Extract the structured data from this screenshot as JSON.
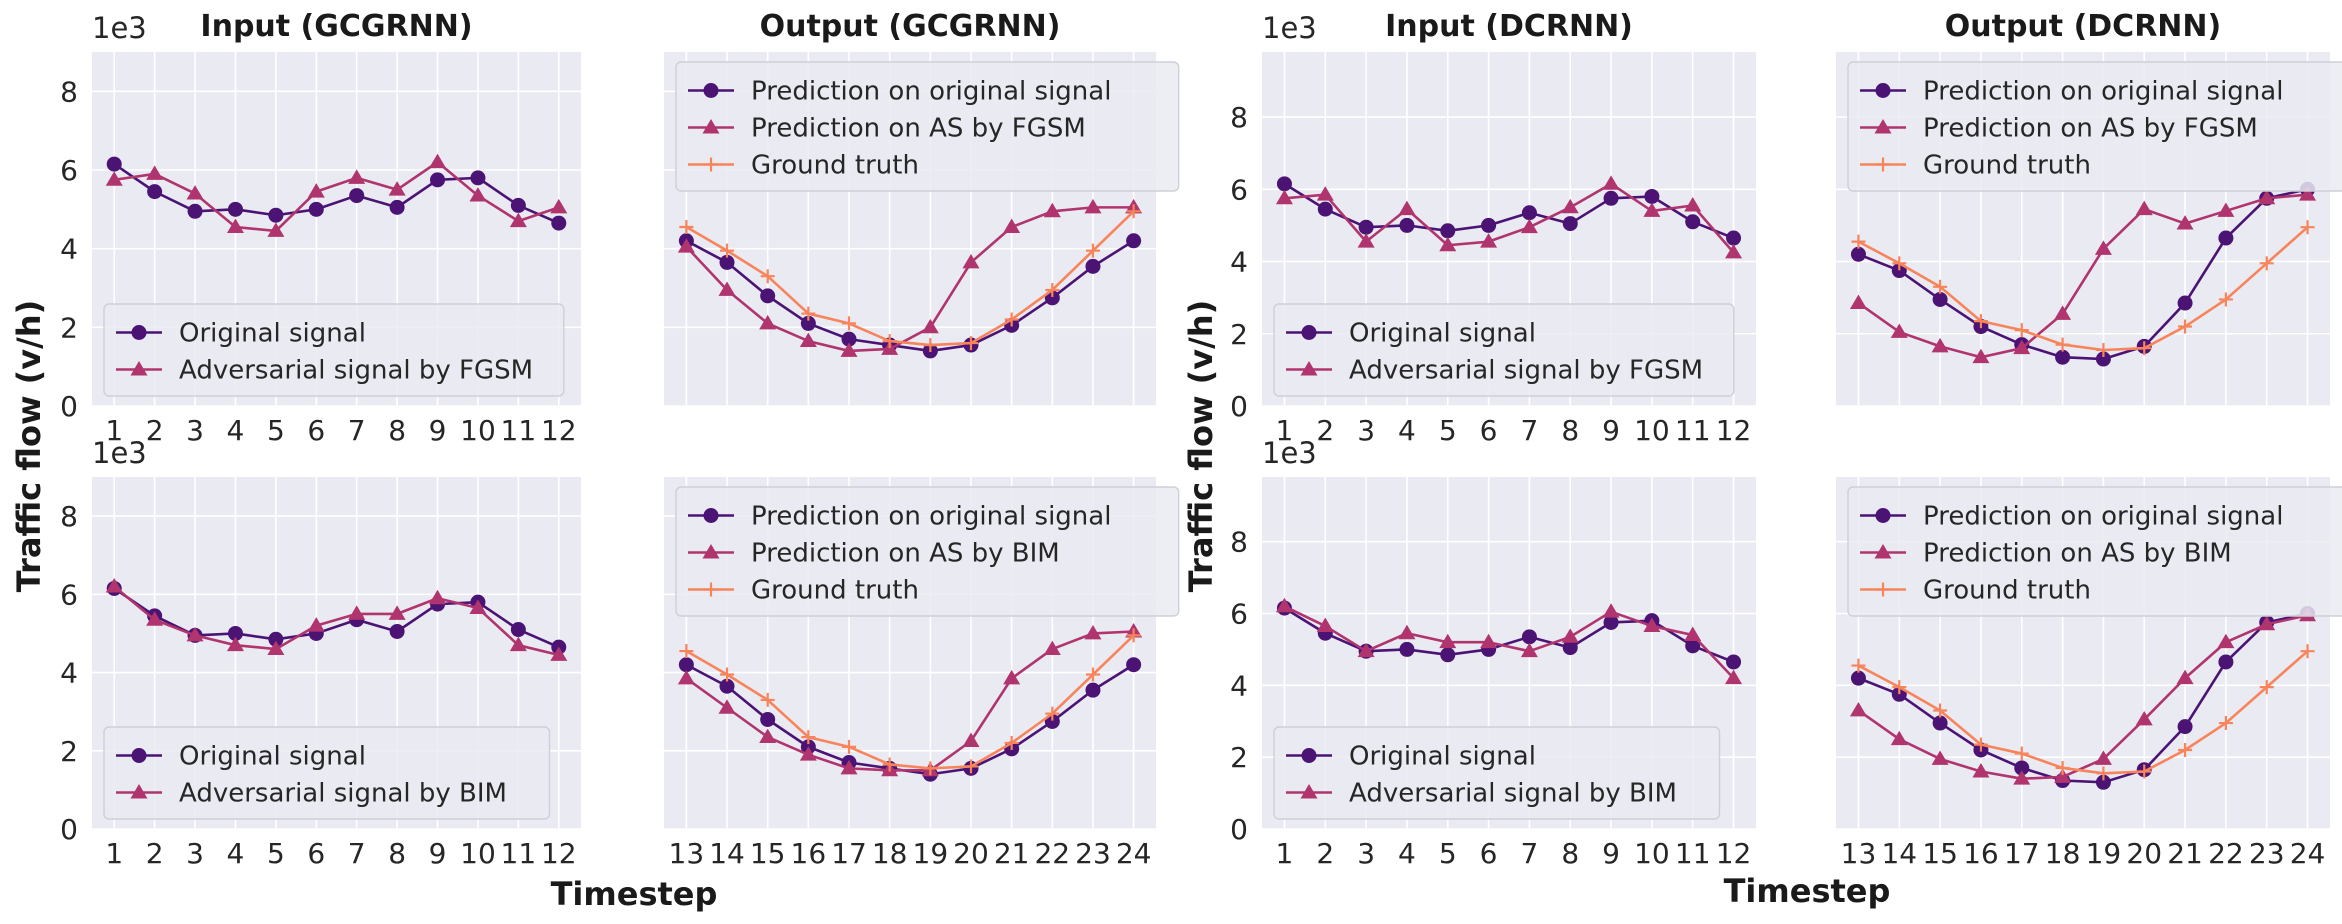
{
  "colors": {
    "original": "#4a1374",
    "adversarial": "#b0346e",
    "ground": "#f7845b",
    "panel_bg": "#eaeaf2",
    "grid": "#ffffff",
    "legend_bg": "#eaeaf2"
  },
  "labels": {
    "ylabel": "Traffic flow (v/h)",
    "xlabel": "Timestep",
    "multiplier": "1e3"
  },
  "chart_data": [
    {
      "type": "line",
      "title": "Input (GCGRNN)",
      "ylim": [
        0,
        9
      ],
      "yticks": [
        0,
        2,
        4,
        6,
        8
      ],
      "x": [
        1,
        2,
        3,
        4,
        5,
        6,
        7,
        8,
        9,
        10,
        11,
        12
      ],
      "xticks": [
        1,
        2,
        3,
        4,
        5,
        6,
        7,
        8,
        9,
        10,
        11,
        12
      ],
      "legend_position": "lower-left",
      "show_multiplier": true,
      "series": [
        {
          "name": "Original signal",
          "style": "original",
          "values": [
            6.15,
            5.45,
            4.95,
            5.0,
            4.85,
            5.0,
            5.35,
            5.05,
            5.75,
            5.8,
            5.1,
            4.65
          ]
        },
        {
          "name": "Adversarial signal by FGSM",
          "style": "adversarial",
          "values": [
            5.75,
            5.9,
            5.4,
            4.55,
            4.45,
            5.45,
            5.8,
            5.5,
            6.2,
            5.35,
            4.7,
            5.05
          ]
        }
      ]
    },
    {
      "type": "line",
      "title": "Output (GCGRNN)",
      "ylim": [
        0,
        9
      ],
      "yticks": [
        0,
        2,
        4,
        6,
        8
      ],
      "x": [
        13,
        14,
        15,
        16,
        17,
        18,
        19,
        20,
        21,
        22,
        23,
        24
      ],
      "xticks": [],
      "legend_position": "upper-left",
      "show_multiplier": false,
      "series": [
        {
          "name": "Prediction on original signal",
          "style": "original",
          "values": [
            4.2,
            3.65,
            2.8,
            2.1,
            1.7,
            1.55,
            1.4,
            1.55,
            2.05,
            2.75,
            3.55,
            4.2
          ]
        },
        {
          "name": "Prediction on AS by FGSM",
          "style": "adversarial",
          "values": [
            4.05,
            2.95,
            2.1,
            1.65,
            1.4,
            1.45,
            2.0,
            3.65,
            4.55,
            4.95,
            5.05,
            5.05
          ]
        },
        {
          "name": "Ground truth",
          "style": "ground",
          "values": [
            4.55,
            3.95,
            3.3,
            2.35,
            2.1,
            1.65,
            1.55,
            1.6,
            2.2,
            2.95,
            3.95,
            4.95
          ]
        }
      ]
    },
    {
      "type": "line",
      "title": "Input (DCRNN)",
      "ylim": [
        0,
        9.8
      ],
      "yticks": [
        0,
        2,
        4,
        6,
        8
      ],
      "x": [
        1,
        2,
        3,
        4,
        5,
        6,
        7,
        8,
        9,
        10,
        11,
        12
      ],
      "xticks": [
        1,
        2,
        3,
        4,
        5,
        6,
        7,
        8,
        9,
        10,
        11,
        12
      ],
      "legend_position": "lower-left",
      "show_multiplier": true,
      "series": [
        {
          "name": "Original signal",
          "style": "original",
          "values": [
            6.15,
            5.45,
            4.95,
            5.0,
            4.85,
            5.0,
            5.35,
            5.05,
            5.75,
            5.8,
            5.1,
            4.65
          ]
        },
        {
          "name": "Adversarial signal by FGSM",
          "style": "adversarial",
          "values": [
            5.75,
            5.85,
            4.55,
            5.45,
            4.45,
            4.55,
            4.95,
            5.5,
            6.15,
            5.4,
            5.55,
            4.25
          ]
        }
      ]
    },
    {
      "type": "line",
      "title": "Output (DCRNN)",
      "ylim": [
        0,
        9.8
      ],
      "yticks": [
        0,
        2,
        4,
        6,
        8
      ],
      "x": [
        13,
        14,
        15,
        16,
        17,
        18,
        19,
        20,
        21,
        22,
        23,
        24
      ],
      "xticks": [],
      "legend_position": "upper-left",
      "show_multiplier": false,
      "series": [
        {
          "name": "Prediction on original signal",
          "style": "original",
          "values": [
            4.2,
            3.75,
            2.95,
            2.2,
            1.7,
            1.35,
            1.3,
            1.65,
            2.85,
            4.65,
            5.75,
            6.0
          ]
        },
        {
          "name": "Prediction on AS by FGSM",
          "style": "adversarial",
          "values": [
            2.85,
            2.05,
            1.65,
            1.35,
            1.6,
            2.55,
            4.35,
            5.45,
            5.05,
            5.4,
            5.75,
            5.85
          ]
        },
        {
          "name": "Ground truth",
          "style": "ground",
          "values": [
            4.55,
            3.95,
            3.3,
            2.35,
            2.1,
            1.7,
            1.55,
            1.6,
            2.2,
            2.95,
            3.95,
            4.95
          ]
        }
      ]
    },
    {
      "type": "line",
      "title": "",
      "ylim": [
        0,
        9
      ],
      "yticks": [
        0,
        2,
        4,
        6,
        8
      ],
      "x": [
        1,
        2,
        3,
        4,
        5,
        6,
        7,
        8,
        9,
        10,
        11,
        12
      ],
      "xticks": [
        1,
        2,
        3,
        4,
        5,
        6,
        7,
        8,
        9,
        10,
        11,
        12
      ],
      "legend_position": "lower-left",
      "show_multiplier": true,
      "series": [
        {
          "name": "Original signal",
          "style": "original",
          "values": [
            6.15,
            5.45,
            4.95,
            5.0,
            4.85,
            5.0,
            5.35,
            5.05,
            5.75,
            5.8,
            5.1,
            4.65
          ]
        },
        {
          "name": "Adversarial signal by BIM",
          "style": "adversarial",
          "values": [
            6.2,
            5.35,
            4.95,
            4.7,
            4.6,
            5.2,
            5.5,
            5.5,
            5.9,
            5.65,
            4.7,
            4.45
          ]
        }
      ]
    },
    {
      "type": "line",
      "title": "",
      "ylim": [
        0,
        9
      ],
      "yticks": [
        0,
        2,
        4,
        6,
        8
      ],
      "x": [
        13,
        14,
        15,
        16,
        17,
        18,
        19,
        20,
        21,
        22,
        23,
        24
      ],
      "xticks": [
        13,
        14,
        15,
        16,
        17,
        18,
        19,
        20,
        21,
        22,
        23,
        24
      ],
      "legend_position": "upper-left",
      "show_multiplier": false,
      "series": [
        {
          "name": "Prediction on original signal",
          "style": "original",
          "values": [
            4.2,
            3.65,
            2.8,
            2.1,
            1.7,
            1.55,
            1.4,
            1.55,
            2.05,
            2.75,
            3.55,
            4.2
          ]
        },
        {
          "name": "Prediction on AS by BIM",
          "style": "adversarial",
          "values": [
            3.85,
            3.1,
            2.35,
            1.9,
            1.55,
            1.5,
            1.5,
            2.25,
            3.85,
            4.6,
            5.0,
            5.05
          ]
        },
        {
          "name": "Ground truth",
          "style": "ground",
          "values": [
            4.55,
            3.95,
            3.3,
            2.35,
            2.1,
            1.65,
            1.55,
            1.6,
            2.2,
            2.95,
            3.95,
            4.95
          ]
        }
      ]
    },
    {
      "type": "line",
      "title": "",
      "ylim": [
        0,
        9.8
      ],
      "yticks": [
        0,
        2,
        4,
        6,
        8
      ],
      "x": [
        1,
        2,
        3,
        4,
        5,
        6,
        7,
        8,
        9,
        10,
        11,
        12
      ],
      "xticks": [
        1,
        2,
        3,
        4,
        5,
        6,
        7,
        8,
        9,
        10,
        11,
        12
      ],
      "legend_position": "lower-left",
      "show_multiplier": true,
      "series": [
        {
          "name": "Original signal",
          "style": "original",
          "values": [
            6.15,
            5.45,
            4.95,
            5.0,
            4.85,
            5.0,
            5.35,
            5.05,
            5.75,
            5.8,
            5.1,
            4.65
          ]
        },
        {
          "name": "Adversarial signal by BIM",
          "style": "adversarial",
          "values": [
            6.2,
            5.65,
            4.95,
            5.45,
            5.2,
            5.2,
            4.95,
            5.35,
            6.05,
            5.65,
            5.4,
            4.2
          ]
        }
      ]
    },
    {
      "type": "line",
      "title": "",
      "ylim": [
        0,
        9.8
      ],
      "yticks": [
        0,
        2,
        4,
        6,
        8
      ],
      "x": [
        13,
        14,
        15,
        16,
        17,
        18,
        19,
        20,
        21,
        22,
        23,
        24
      ],
      "xticks": [
        13,
        14,
        15,
        16,
        17,
        18,
        19,
        20,
        21,
        22,
        23,
        24
      ],
      "legend_position": "upper-left",
      "show_multiplier": false,
      "series": [
        {
          "name": "Prediction on original signal",
          "style": "original",
          "values": [
            4.2,
            3.75,
            2.95,
            2.2,
            1.7,
            1.35,
            1.3,
            1.65,
            2.85,
            4.65,
            5.75,
            6.0
          ]
        },
        {
          "name": "Prediction on AS by BIM",
          "style": "adversarial",
          "values": [
            3.3,
            2.5,
            1.95,
            1.6,
            1.4,
            1.45,
            1.95,
            3.05,
            4.2,
            5.2,
            5.7,
            5.95
          ]
        },
        {
          "name": "Ground truth",
          "style": "ground",
          "values": [
            4.55,
            3.95,
            3.3,
            2.35,
            2.1,
            1.7,
            1.55,
            1.6,
            2.2,
            2.95,
            3.95,
            4.95
          ]
        }
      ]
    }
  ]
}
